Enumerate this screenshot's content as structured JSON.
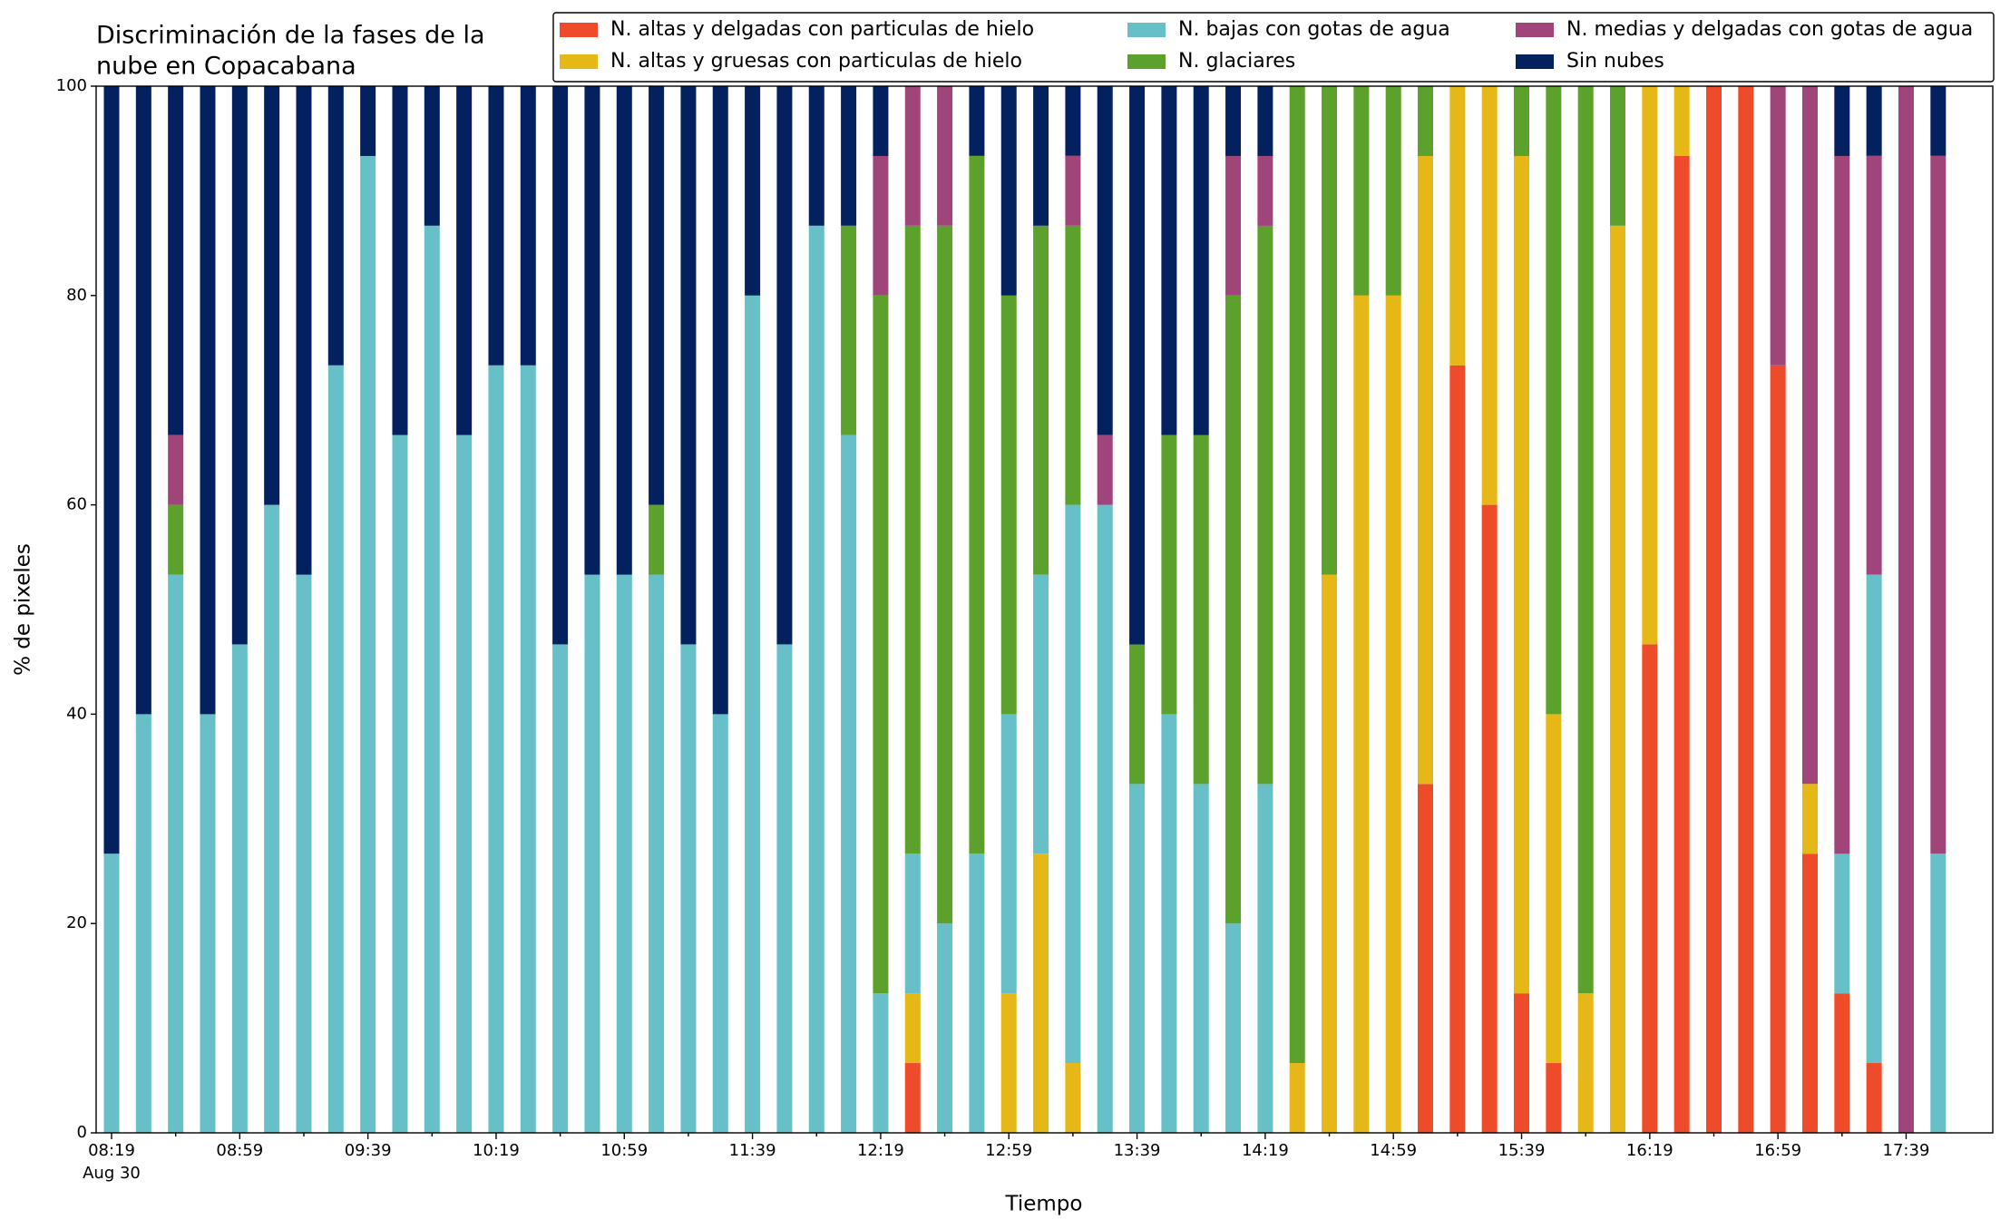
{
  "chart_data": {
    "type": "stacked_bar",
    "title": [
      "Discriminación de la fases de la",
      "nube en Copacabana"
    ],
    "x_label": "Tiempo",
    "y_label": "% de pixeles",
    "date_label": "Aug 30",
    "categories": [
      "08:19",
      null,
      null,
      null,
      "08:59",
      null,
      null,
      null,
      "09:39",
      null,
      null,
      null,
      "10:19",
      null,
      null,
      null,
      "10:59",
      null,
      null,
      null,
      "11:39",
      null,
      null,
      null,
      "12:19",
      null,
      null,
      null,
      "12:59",
      null,
      null,
      null,
      "13:39",
      null,
      null,
      null,
      "14:19",
      null,
      null,
      null,
      "14:59",
      null,
      null,
      null,
      "15:39",
      null,
      null,
      null,
      "16:19",
      null,
      null,
      null,
      "16:59",
      null,
      null,
      null,
      "17:39",
      null
    ],
    "ylim": [
      0,
      100
    ],
    "yticks": [
      0,
      20,
      40,
      60,
      80,
      100
    ],
    "legend": "upper right",
    "series": [
      {
        "name": "N. altas y delgadas con particulas de hielo",
        "color": "#ee4b2b",
        "values": [
          0,
          0,
          0,
          0,
          0,
          0,
          0,
          0,
          0,
          0,
          0,
          0,
          0,
          0,
          0,
          0,
          0,
          0,
          0,
          0,
          0,
          0,
          0,
          0,
          0,
          6.67,
          0,
          0,
          0,
          0,
          0,
          0,
          0,
          0,
          0,
          0,
          0,
          0,
          0,
          0,
          0,
          33.33,
          73.33,
          60,
          13.33,
          6.67,
          0,
          0,
          46.67,
          93.33,
          100,
          100,
          73.33,
          26.67,
          13.33,
          6.67,
          0,
          0
        ]
      },
      {
        "name": "N. altas y gruesas con particulas de hielo",
        "color": "#e5b817",
        "values": [
          0,
          0,
          0,
          0,
          0,
          0,
          0,
          0,
          0,
          0,
          0,
          0,
          0,
          0,
          0,
          0,
          0,
          0,
          0,
          0,
          0,
          0,
          0,
          0,
          0,
          6.67,
          0,
          0,
          13.33,
          26.67,
          6.67,
          0,
          0,
          0,
          0,
          0,
          0,
          6.67,
          53.33,
          80,
          80,
          60,
          26.67,
          40,
          80,
          33.33,
          13.33,
          86.67,
          53.33,
          6.67,
          0,
          0,
          0,
          6.67,
          0,
          0,
          0,
          0
        ]
      },
      {
        "name": "N. bajas con gotas de agua",
        "color": "#67bfc8",
        "values": [
          26.67,
          40,
          53.33,
          40,
          46.67,
          60,
          53.33,
          73.33,
          93.33,
          66.67,
          86.67,
          66.67,
          73.33,
          73.33,
          46.67,
          53.33,
          53.33,
          53.33,
          46.67,
          40,
          80,
          46.67,
          86.67,
          66.67,
          13.33,
          13.33,
          20,
          26.67,
          26.67,
          26.67,
          53.33,
          60,
          33.33,
          40,
          33.33,
          20,
          33.33,
          0,
          0,
          0,
          0,
          0,
          0,
          0,
          0,
          0,
          0,
          0,
          0,
          0,
          0,
          0,
          0,
          0,
          13.33,
          46.67,
          0,
          26.67
        ]
      },
      {
        "name": "N. glaciares",
        "color": "#5ba12b",
        "values": [
          0,
          0,
          6.67,
          0,
          0,
          0,
          0,
          0,
          0,
          0,
          0,
          0,
          0,
          0,
          0,
          0,
          0,
          6.67,
          0,
          0,
          0,
          0,
          0,
          20,
          66.67,
          60,
          66.67,
          66.67,
          40,
          33.33,
          26.67,
          0,
          13.33,
          26.67,
          33.33,
          60,
          53.33,
          93.33,
          46.67,
          20,
          20,
          6.67,
          0,
          0,
          6.67,
          60,
          86.67,
          13.33,
          0,
          0,
          0,
          0,
          0,
          0,
          0,
          0,
          0,
          0
        ]
      },
      {
        "name": "N. medias y delgadas con gotas de agua",
        "color": "#a0457a",
        "values": [
          0,
          0,
          6.67,
          0,
          0,
          0,
          0,
          0,
          0,
          0,
          0,
          0,
          0,
          0,
          0,
          0,
          0,
          0,
          0,
          0,
          0,
          0,
          0,
          0,
          13.33,
          13.33,
          13.33,
          0,
          0,
          0,
          6.67,
          6.67,
          0,
          0,
          0,
          13.33,
          6.67,
          0,
          0,
          0,
          0,
          0,
          0,
          0,
          0,
          0,
          0,
          0,
          0,
          0,
          0,
          0,
          26.67,
          66.67,
          66.67,
          40,
          100,
          66.67
        ]
      },
      {
        "name": "Sin nubes",
        "color": "#03215e",
        "values": [
          73.33,
          60,
          33.33,
          60,
          53.33,
          40,
          46.67,
          26.67,
          6.67,
          33.33,
          13.33,
          33.33,
          26.67,
          26.67,
          53.33,
          46.67,
          46.67,
          40,
          53.33,
          60,
          20,
          53.33,
          13.33,
          13.33,
          6.67,
          0,
          0,
          6.67,
          20,
          13.33,
          6.67,
          33.33,
          53.33,
          33.33,
          33.33,
          6.67,
          6.67,
          0,
          0,
          0,
          0,
          0,
          0,
          0,
          0,
          0,
          0,
          0,
          0,
          0,
          0,
          0,
          0,
          0,
          6.67,
          6.67,
          0,
          6.67
        ]
      }
    ]
  }
}
